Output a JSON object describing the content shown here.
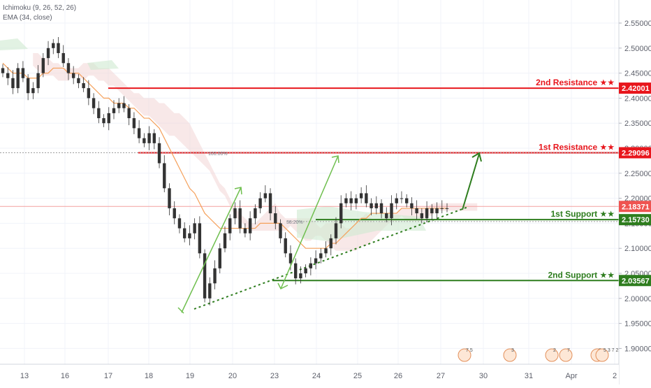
{
  "indicators": {
    "ichimoku": "Ichimoku (9, 26, 52, 26)",
    "ema": "EMA (34, close)"
  },
  "chart_data": {
    "type": "candlestick",
    "y_axis": {
      "ticks": [
        "2.55000",
        "2.50000",
        "2.45000",
        "2.40000",
        "2.35000",
        "2.30000",
        "2.25000",
        "2.20000",
        "2.15000",
        "2.10000",
        "2.05000",
        "2.00000",
        "1.95000",
        "1.90000"
      ],
      "ylim": [
        1.875,
        2.575
      ]
    },
    "x_axis": {
      "ticks": [
        "13",
        "16",
        "17",
        "18",
        "19",
        "20",
        "23",
        "24",
        "25",
        "26",
        "27",
        "30",
        "31",
        "Apr",
        "2"
      ]
    },
    "price_tags": [
      {
        "label": "2nd Resistance ★★",
        "value": "2.42001",
        "color": "#e8161c"
      },
      {
        "label": "1st Resistance ★★",
        "value": "2.29096",
        "color": "#e8161c"
      },
      {
        "label": "",
        "value": "2.18371",
        "color": "#ef5350"
      },
      {
        "label": "1st Support ★★",
        "value": "2.15730",
        "color": "#2e7d1e"
      },
      {
        "label": "2nd Support ★★",
        "value": "2.03567",
        "color": "#2e7d1e"
      }
    ],
    "fib_labels": [
      {
        "text": "100.00%",
        "price": 2.2905
      },
      {
        "text": "38.20%",
        "price": 2.1536
      }
    ],
    "event_badges": [
      "7 5",
      "3",
      "2",
      "7",
      "8",
      "5 3 7 2"
    ],
    "close_series": [
      2.45,
      2.44,
      2.42,
      2.46,
      2.44,
      2.41,
      2.42,
      2.45,
      2.48,
      2.5,
      2.51,
      2.49,
      2.47,
      2.45,
      2.44,
      2.43,
      2.42,
      2.4,
      2.38,
      2.36,
      2.35,
      2.37,
      2.38,
      2.39,
      2.38,
      2.36,
      2.34,
      2.32,
      2.31,
      2.33,
      2.31,
      2.27,
      2.22,
      2.18,
      2.16,
      2.14,
      2.12,
      2.13,
      2.15,
      2.09,
      2.0,
      2.03,
      2.06,
      2.1,
      2.13,
      2.16,
      2.18,
      2.14,
      2.13,
      2.16,
      2.18,
      2.2,
      2.21,
      2.17,
      2.15,
      2.12,
      2.09,
      2.07,
      2.04,
      2.05,
      2.06,
      2.07,
      2.08,
      2.09,
      2.1,
      2.12,
      2.15,
      2.19,
      2.2,
      2.19,
      2.2,
      2.21,
      2.19,
      2.18,
      2.19,
      2.17,
      2.16,
      2.19,
      2.2,
      2.2,
      2.19,
      2.18,
      2.17,
      2.16,
      2.18,
      2.17,
      2.18,
      2.18,
      2.18
    ],
    "ema_series": [
      2.47,
      2.46,
      2.45,
      2.45,
      2.45,
      2.44,
      2.44,
      2.44,
      2.45,
      2.45,
      2.46,
      2.46,
      2.46,
      2.45,
      2.45,
      2.45,
      2.44,
      2.43,
      2.42,
      2.41,
      2.4,
      2.4,
      2.39,
      2.39,
      2.39,
      2.38,
      2.38,
      2.37,
      2.36,
      2.36,
      2.35,
      2.34,
      2.32,
      2.3,
      2.28,
      2.26,
      2.24,
      2.22,
      2.21,
      2.19,
      2.17,
      2.16,
      2.15,
      2.14,
      2.14,
      2.14,
      2.14,
      2.14,
      2.14,
      2.14,
      2.14,
      2.15,
      2.15,
      2.15,
      2.15,
      2.15,
      2.14,
      2.13,
      2.12,
      2.11,
      2.1,
      2.1,
      2.1,
      2.1,
      2.1,
      2.11,
      2.11,
      2.12,
      2.13,
      2.14,
      2.15,
      2.16,
      2.16,
      2.17,
      2.17,
      2.17,
      2.17,
      2.17,
      2.17,
      2.18,
      2.18,
      2.18,
      2.18,
      2.18,
      2.18,
      2.18,
      2.18,
      2.18,
      2.18
    ],
    "cloud_series": [
      2.49,
      2.49,
      2.48,
      2.48,
      2.47,
      2.47,
      2.46,
      2.46,
      2.45,
      2.45,
      2.44,
      2.45,
      2.45,
      2.44,
      2.44,
      2.43,
      2.43,
      2.42,
      2.41,
      2.4,
      2.39,
      2.38,
      2.37,
      2.37,
      2.36,
      2.35,
      2.34,
      2.33,
      2.33,
      2.32,
      2.31,
      2.3,
      2.29,
      2.28,
      2.27,
      2.26,
      2.24,
      2.22,
      2.21,
      2.2,
      2.18,
      2.17,
      2.16,
      2.15,
      2.15,
      2.16,
      2.17,
      2.18,
      2.19,
      2.17,
      2.16,
      2.15,
      2.14,
      2.13,
      2.12,
      2.12,
      2.13,
      2.14,
      2.15,
      2.15,
      2.16,
      2.15,
      2.14,
      2.14,
      2.15,
      2.16,
      2.17,
      2.16,
      2.15,
      2.16,
      2.16,
      2.17,
      2.17,
      2.17,
      2.16,
      2.16,
      2.16,
      2.16,
      2.17,
      2.17,
      2.18,
      2.18,
      2.18,
      2.18,
      2.18,
      2.18,
      2.18,
      2.18,
      2.18
    ]
  }
}
